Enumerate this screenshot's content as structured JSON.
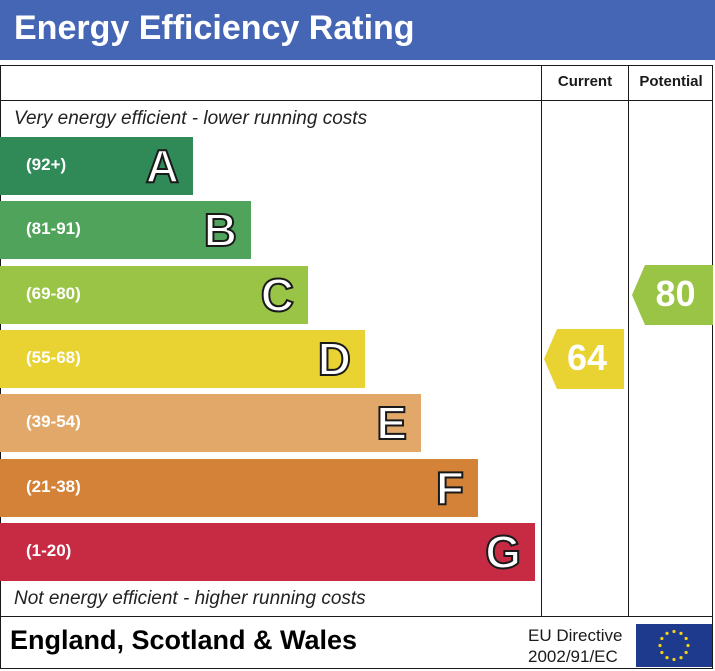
{
  "title": "Energy Efficiency Rating",
  "columns": {
    "current": "Current",
    "potential": "Potential"
  },
  "captions": {
    "top": "Very energy efficient - lower running costs",
    "bottom": "Not energy efficient - higher running costs"
  },
  "chart_data": {
    "type": "bar",
    "title": "Energy Efficiency Rating",
    "categories": [
      "A",
      "B",
      "C",
      "D",
      "E",
      "F",
      "G"
    ],
    "ranges": [
      "(92+)",
      "(81-91)",
      "(69-80)",
      "(55-68)",
      "(39-54)",
      "(21-38)",
      "(1-20)"
    ],
    "colors": [
      "#2f8a57",
      "#4fa35a",
      "#99c446",
      "#e8d332",
      "#e2a86a",
      "#d38237",
      "#c72b43"
    ],
    "current": {
      "value": 64,
      "band": "D",
      "color": "#e8d332"
    },
    "potential": {
      "value": 80,
      "band": "C",
      "color": "#99c446"
    }
  },
  "footer": {
    "region": "England, Scotland & Wales",
    "directive_line1": "EU Directive",
    "directive_line2": "2002/91/EC",
    "flag_color": "#1d3a8c",
    "star_color": "#f7d117"
  }
}
